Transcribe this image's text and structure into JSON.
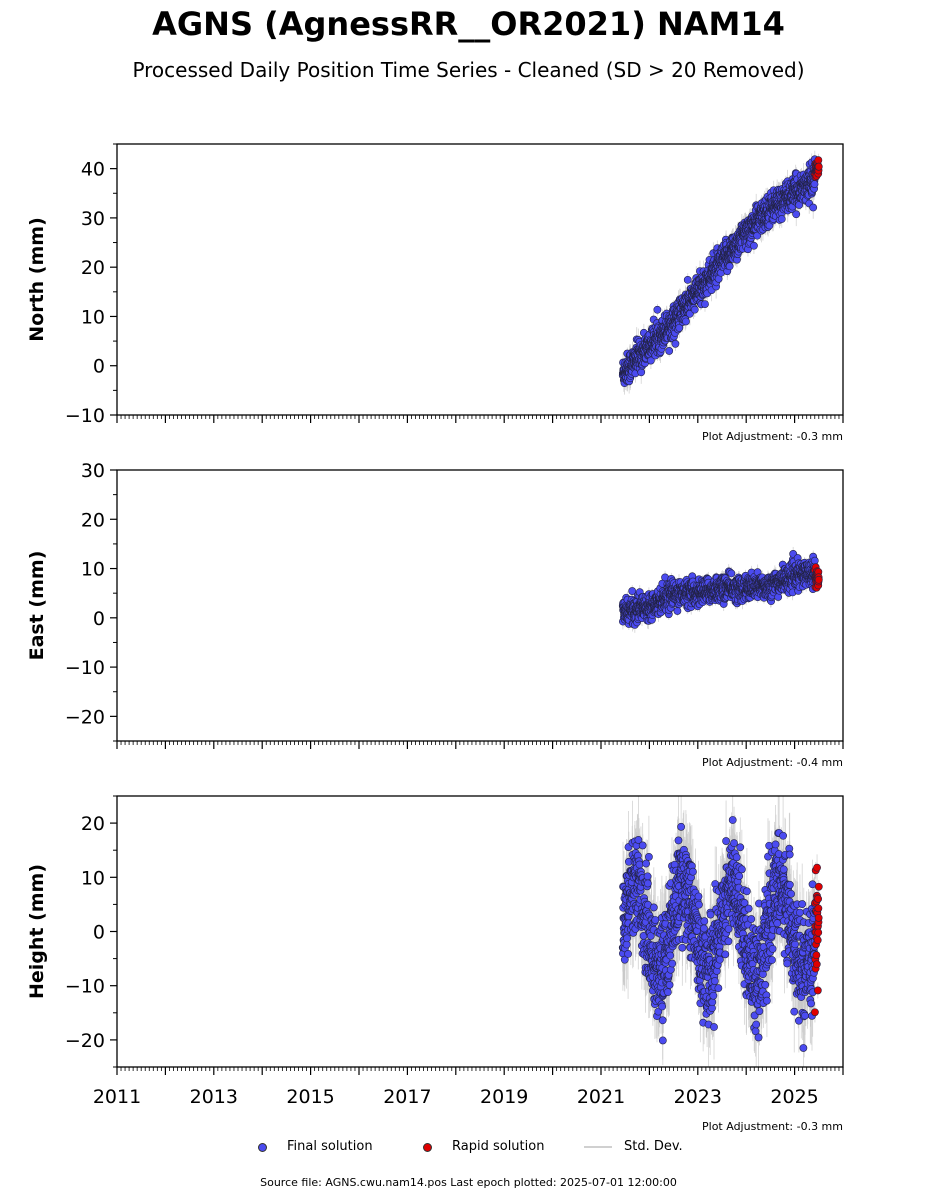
{
  "title": "AGNS (AgnessRR__OR2021) NAM14",
  "subtitle": "Processed Daily Position Time Series - Cleaned (SD > 20 Removed)",
  "colors": {
    "final": "#4b4bf0",
    "rapid": "#e00000",
    "stddev": "#c8c8c8",
    "edge": "#222244"
  },
  "chart_data": [
    {
      "type": "scatter",
      "ylabel": "North (mm)",
      "ylim": [
        -10,
        45
      ],
      "yticks": [
        -10,
        0,
        10,
        20,
        30,
        40
      ],
      "xlim": [
        2011,
        2026
      ],
      "xticks": [
        2011,
        2013,
        2015,
        2017,
        2019,
        2021,
        2023,
        2025
      ],
      "show_xtick_labels": false,
      "adjustment": "Plot Adjustment: -0.3 mm",
      "final_range": [
        2021.45,
        2025.42
      ],
      "rapid_range": [
        2025.42,
        2025.5
      ],
      "series": [
        {
          "name": "Final solution",
          "trend": [
            [
              2021.45,
              -1.5
            ],
            [
              2022.0,
              4
            ],
            [
              2022.5,
              9
            ],
            [
              2023.0,
              15
            ],
            [
              2023.5,
              21
            ],
            [
              2024.0,
              27
            ],
            [
              2024.5,
              32
            ],
            [
              2025.0,
              35
            ],
            [
              2025.42,
              38
            ]
          ],
          "scatter_sd": 1.5,
          "error_bar": 1.8
        },
        {
          "name": "Rapid solution",
          "trend": [
            [
              2025.42,
              39.5
            ],
            [
              2025.5,
              40.5
            ]
          ],
          "scatter_sd": 0.8,
          "error_bar": 1.0
        }
      ]
    },
    {
      "type": "scatter",
      "ylabel": "East (mm)",
      "ylim": [
        -25,
        30
      ],
      "yticks": [
        -20,
        -10,
        0,
        10,
        20,
        30
      ],
      "xlim": [
        2011,
        2026
      ],
      "xticks": [
        2011,
        2013,
        2015,
        2017,
        2019,
        2021,
        2023,
        2025
      ],
      "show_xtick_labels": false,
      "adjustment": "Plot Adjustment: -0.4 mm",
      "final_range": [
        2021.45,
        2025.42
      ],
      "rapid_range": [
        2025.42,
        2025.5
      ],
      "series": [
        {
          "name": "Final solution",
          "trend": [
            [
              2021.45,
              1
            ],
            [
              2022.0,
              2.5
            ],
            [
              2022.5,
              5
            ],
            [
              2023.0,
              5
            ],
            [
              2023.5,
              6
            ],
            [
              2024.0,
              6
            ],
            [
              2024.5,
              6.5
            ],
            [
              2025.0,
              8.5
            ],
            [
              2025.42,
              9.5
            ]
          ],
          "scatter_sd": 1.2,
          "error_bar": 1.2
        },
        {
          "name": "Rapid solution",
          "trend": [
            [
              2025.42,
              8.5
            ],
            [
              2025.5,
              7.5
            ]
          ],
          "scatter_sd": 1.0,
          "error_bar": 0.8
        }
      ]
    },
    {
      "type": "scatter",
      "ylabel": "Height (mm)",
      "ylim": [
        -25,
        25
      ],
      "yticks": [
        -20,
        -10,
        0,
        10,
        20
      ],
      "xlim": [
        2011,
        2026
      ],
      "xticks": [
        2011,
        2013,
        2015,
        2017,
        2019,
        2021,
        2023,
        2025
      ],
      "show_xtick_labels": true,
      "adjustment": "Plot Adjustment: -0.3 mm",
      "final_range": [
        2021.45,
        2025.42
      ],
      "rapid_range": [
        2025.42,
        2025.5
      ],
      "seasonal_amplitude": 8,
      "seasonal_peak": 0.7,
      "series": [
        {
          "name": "Final solution",
          "trend": [
            [
              2021.45,
              1
            ],
            [
              2025.42,
              0
            ]
          ],
          "scatter_sd": 4.5,
          "error_bar": 6
        },
        {
          "name": "Rapid solution",
          "trend": [
            [
              2025.42,
              0
            ],
            [
              2025.5,
              0
            ]
          ],
          "scatter_sd": 5,
          "error_bar": 2
        }
      ]
    }
  ],
  "legend": {
    "final": "Final solution",
    "rapid": "Rapid solution",
    "stddev": "Std. Dev."
  },
  "footer": "Source file: AGNS.cwu.nam14.pos  Last epoch plotted: 2025-07-01 12:00:00"
}
